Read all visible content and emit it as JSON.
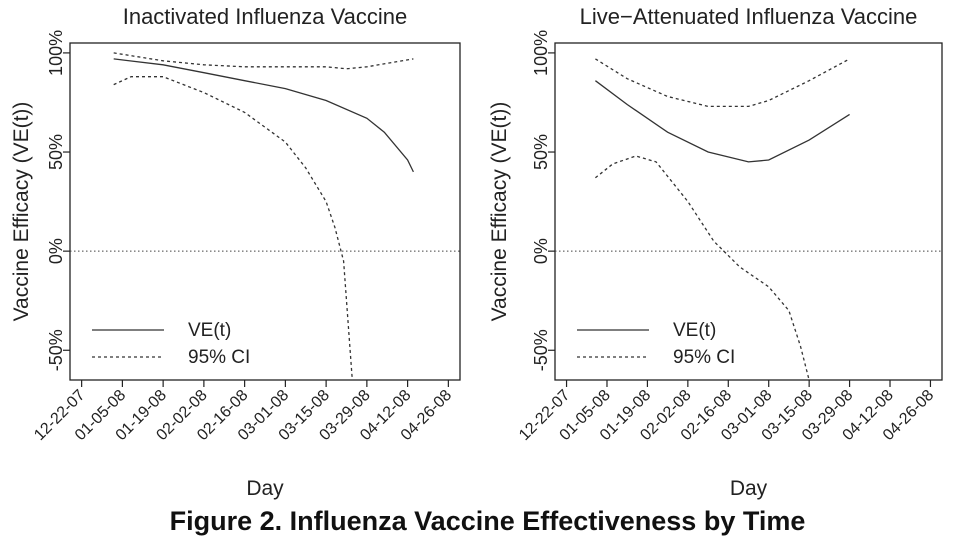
{
  "figure_caption": "Figure 2. Influenza Vaccine Effectiveness by Time",
  "chart_data": [
    {
      "type": "line",
      "title": "Inactivated Influenza Vaccine",
      "xlabel": "Day",
      "ylabel": "Vaccine Efficacy (VE(t))",
      "x_ticks": [
        "12-22-07",
        "01-05-08",
        "01-19-08",
        "02-02-08",
        "02-16-08",
        "03-01-08",
        "03-15-08",
        "03-29-08",
        "04-12-08",
        "04-26-08"
      ],
      "y_ticks": [
        "-50%",
        "0%",
        "50%",
        "100%"
      ],
      "ylim": [
        -65,
        105
      ],
      "grid": false,
      "reference_line": 0,
      "legend": {
        "position": "bottom-left",
        "entries": [
          "VE(t)",
          "95% CI"
        ]
      },
      "series": [
        {
          "name": "VE(t)",
          "style": "solid",
          "points": [
            [
              "01-02-08",
              97
            ],
            [
              "01-19-08",
              94
            ],
            [
              "02-02-08",
              90
            ],
            [
              "02-16-08",
              86
            ],
            [
              "03-01-08",
              82
            ],
            [
              "03-15-08",
              76
            ],
            [
              "03-29-08",
              67
            ],
            [
              "04-04-08",
              60
            ],
            [
              "04-12-08",
              46
            ],
            [
              "04-14-08",
              40
            ]
          ]
        },
        {
          "name": "95% CI",
          "style": "dashed",
          "points": [
            [
              "01-02-08",
              100
            ],
            [
              "01-19-08",
              96
            ],
            [
              "02-02-08",
              94
            ],
            [
              "02-16-08",
              93
            ],
            [
              "03-01-08",
              93
            ],
            [
              "03-15-08",
              93
            ],
            [
              "03-22-08",
              92
            ],
            [
              "03-29-08",
              93
            ],
            [
              "04-14-08",
              97
            ]
          ]
        },
        {
          "name": "95% CI",
          "style": "dashed",
          "points": [
            [
              "01-02-08",
              84
            ],
            [
              "01-08-08",
              88
            ],
            [
              "01-19-08",
              88
            ],
            [
              "02-02-08",
              80
            ],
            [
              "02-16-08",
              70
            ],
            [
              "03-01-08",
              55
            ],
            [
              "03-08-08",
              42
            ],
            [
              "03-15-08",
              25
            ],
            [
              "03-18-08",
              12
            ],
            [
              "03-21-08",
              -5
            ],
            [
              "03-22-08",
              -25
            ],
            [
              "03-23-08",
              -45
            ],
            [
              "03-24-08",
              -65
            ]
          ]
        }
      ]
    },
    {
      "type": "line",
      "title": "Live−Attenuated Influenza Vaccine",
      "xlabel": "Day",
      "ylabel": "Vaccine Efficacy (VE(t))",
      "x_ticks": [
        "12-22-07",
        "01-05-08",
        "01-19-08",
        "02-02-08",
        "02-16-08",
        "03-01-08",
        "03-15-08",
        "03-29-08",
        "04-12-08",
        "04-26-08"
      ],
      "y_ticks": [
        "-50%",
        "0%",
        "50%",
        "100%"
      ],
      "ylim": [
        -65,
        105
      ],
      "grid": false,
      "reference_line": 0,
      "legend": {
        "position": "bottom-left",
        "entries": [
          "VE(t)",
          "95% CI"
        ]
      },
      "series": [
        {
          "name": "VE(t)",
          "style": "solid",
          "points": [
            [
              "01-01-08",
              86
            ],
            [
              "01-12-08",
              74
            ],
            [
              "01-26-08",
              60
            ],
            [
              "02-09-08",
              50
            ],
            [
              "02-23-08",
              45
            ],
            [
              "03-01-08",
              46
            ],
            [
              "03-15-08",
              56
            ],
            [
              "03-29-08",
              69
            ]
          ]
        },
        {
          "name": "95% CI",
          "style": "dashed",
          "points": [
            [
              "01-01-08",
              97
            ],
            [
              "01-12-08",
              87
            ],
            [
              "01-26-08",
              78
            ],
            [
              "02-09-08",
              73
            ],
            [
              "02-23-08",
              73
            ],
            [
              "03-01-08",
              76
            ],
            [
              "03-15-08",
              86
            ],
            [
              "03-29-08",
              97
            ]
          ]
        },
        {
          "name": "95% CI",
          "style": "dashed",
          "points": [
            [
              "01-01-08",
              37
            ],
            [
              "01-07-08",
              44
            ],
            [
              "01-15-08",
              48
            ],
            [
              "01-22-08",
              45
            ],
            [
              "02-02-08",
              25
            ],
            [
              "02-11-08",
              5
            ],
            [
              "02-20-08",
              -8
            ],
            [
              "03-01-08",
              -18
            ],
            [
              "03-08-08",
              -30
            ],
            [
              "03-12-08",
              -48
            ],
            [
              "03-15-08",
              -65
            ]
          ]
        }
      ]
    }
  ]
}
